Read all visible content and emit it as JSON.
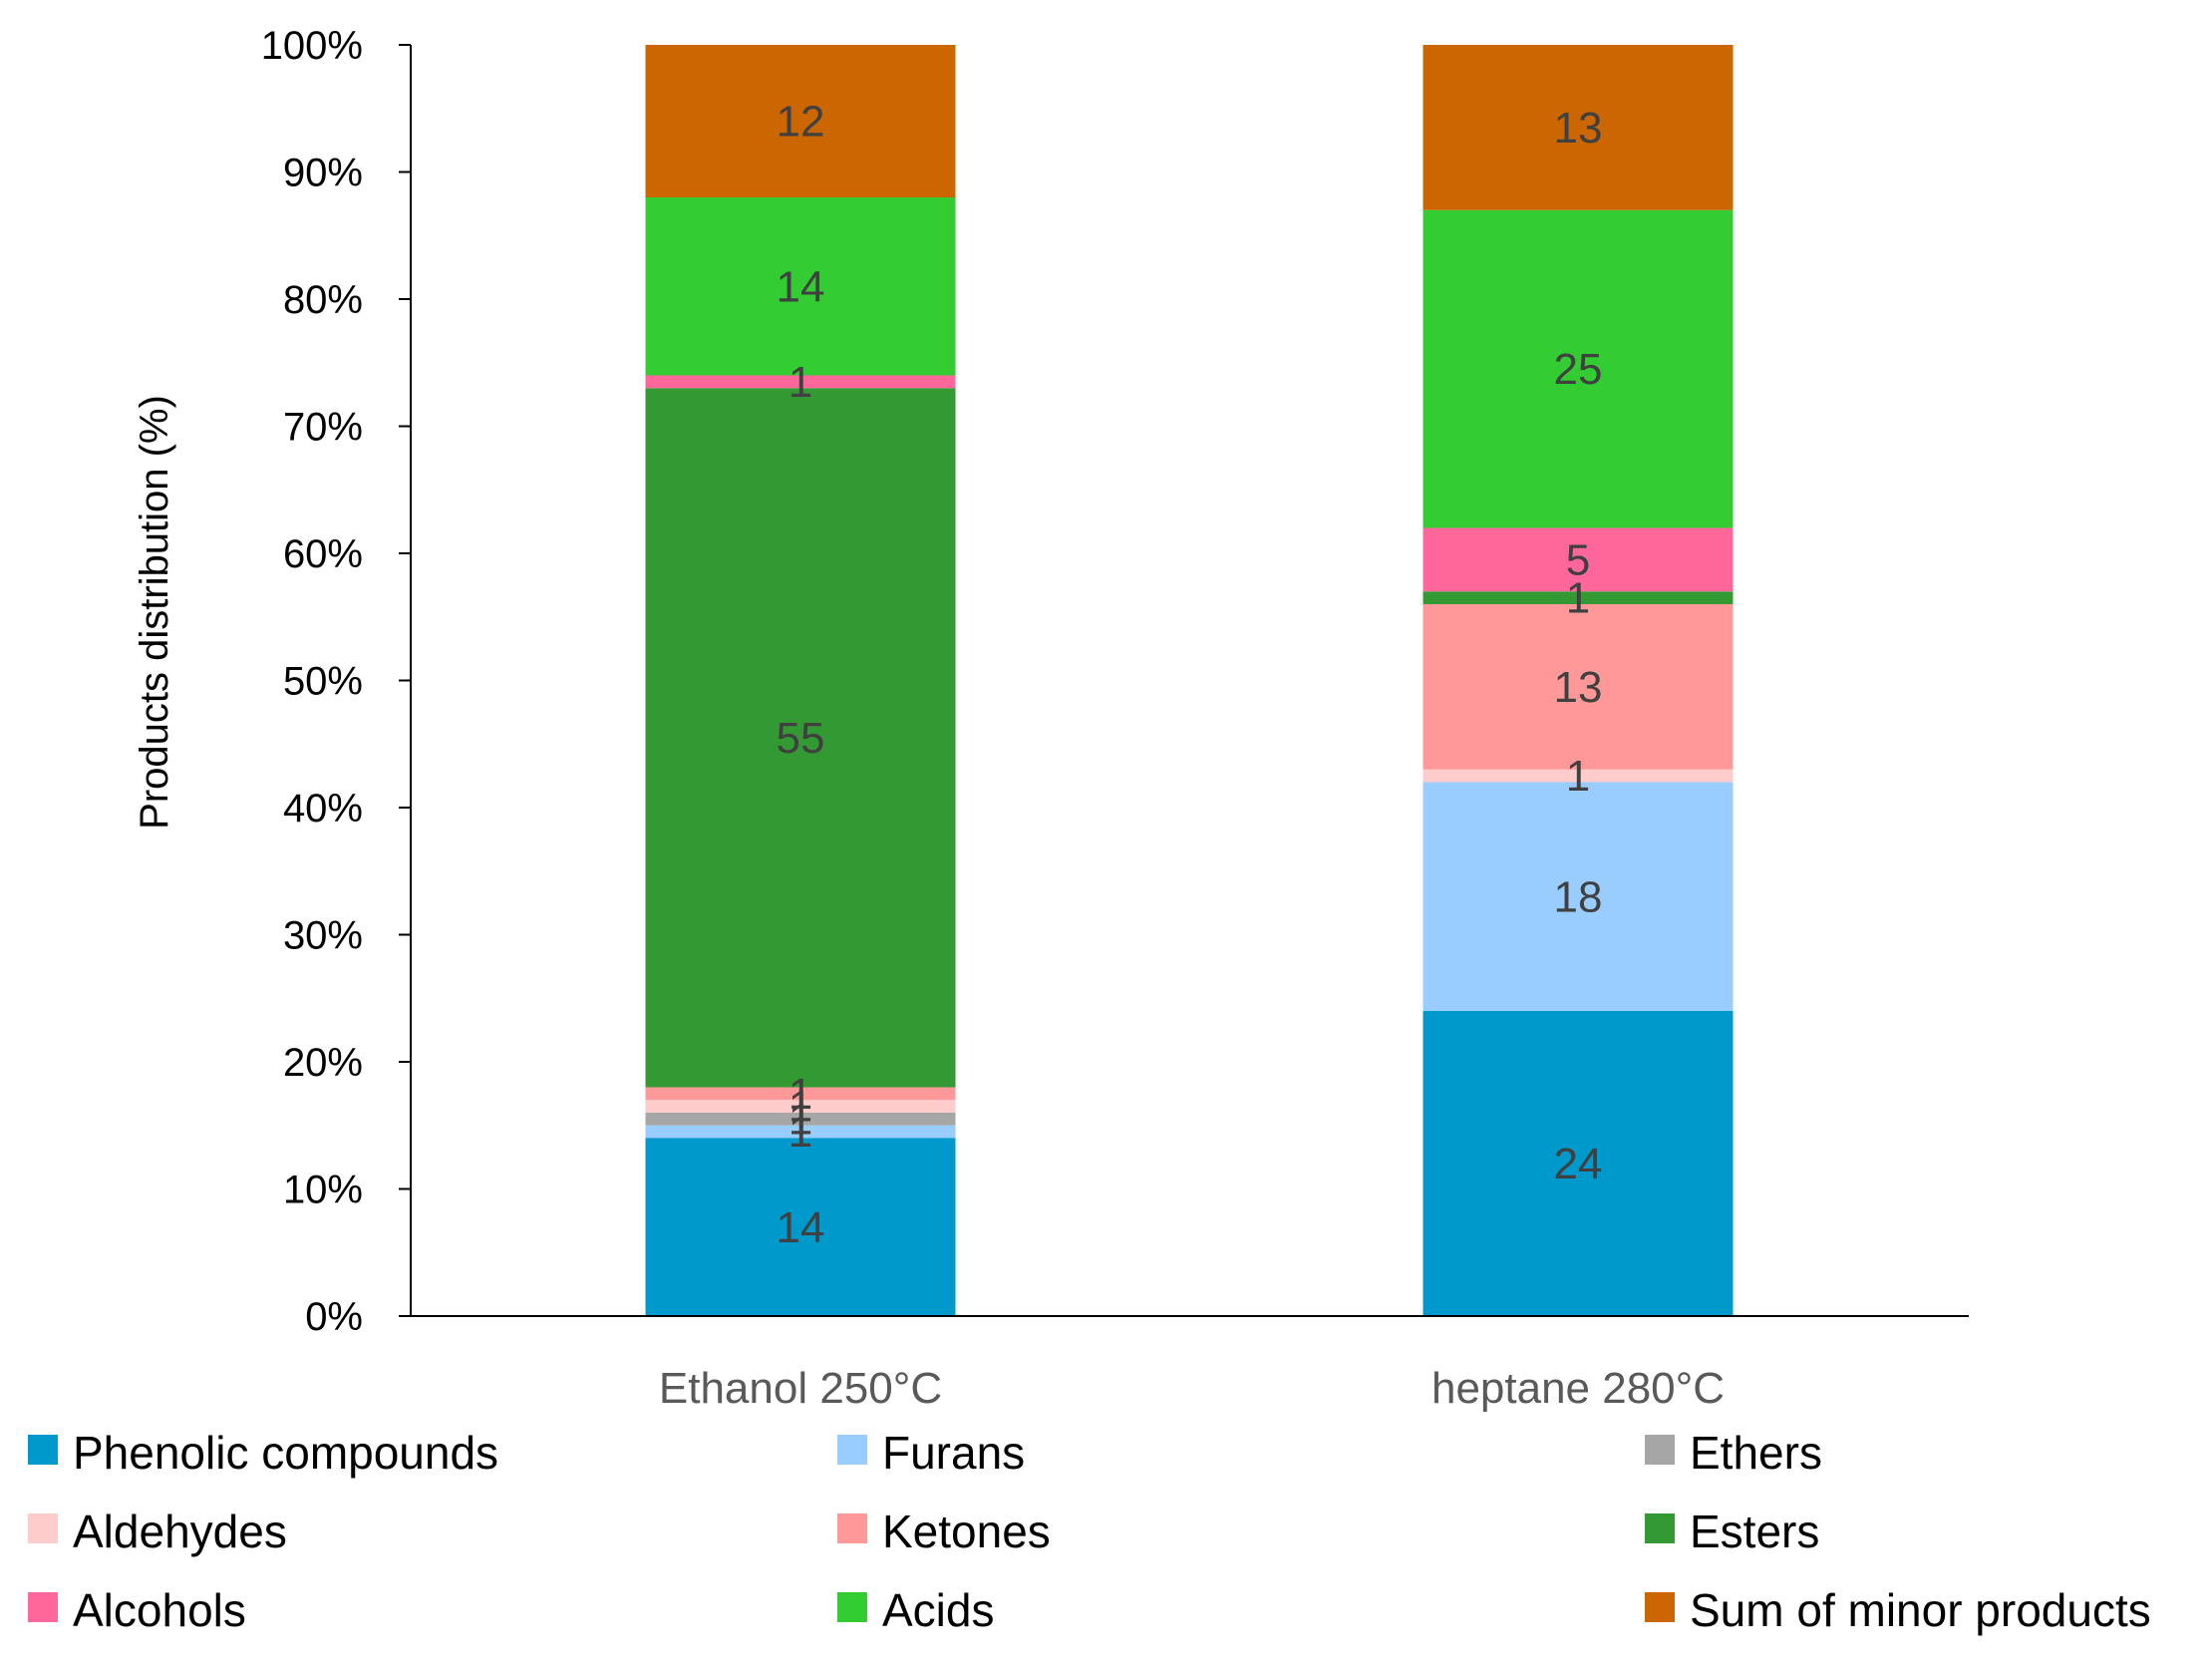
{
  "chart_data": {
    "type": "bar",
    "stacked": true,
    "percent": true,
    "title": "",
    "xlabel": "",
    "ylabel": "Products distribution (%)",
    "ylim": [
      0,
      100
    ],
    "yticks": [
      "0%",
      "10%",
      "20%",
      "30%",
      "40%",
      "50%",
      "60%",
      "70%",
      "80%",
      "90%",
      "100%"
    ],
    "grid": false,
    "legend_position": "bottom",
    "categories": [
      "Ethanol 250°C",
      "heptane 280°C"
    ],
    "series": [
      {
        "name": "Phenolic compounds",
        "color": "#0099CC",
        "values": [
          14,
          24
        ]
      },
      {
        "name": "Furans",
        "color": "#99CCFF",
        "values": [
          1,
          18
        ]
      },
      {
        "name": "Ethers",
        "color": "#A6A6A6",
        "values": [
          1,
          0
        ]
      },
      {
        "name": "Aldehydes",
        "color": "#FFCCCC",
        "values": [
          1,
          1
        ]
      },
      {
        "name": "Ketones",
        "color": "#FF9999",
        "values": [
          1,
          13
        ]
      },
      {
        "name": "Esters",
        "color": "#339933",
        "values": [
          55,
          1
        ]
      },
      {
        "name": "Alcohols",
        "color": "#FF6699",
        "values": [
          1,
          5
        ]
      },
      {
        "name": "Acids",
        "color": "#33CC33",
        "values": [
          14,
          25
        ]
      },
      {
        "name": "Sum of minor products",
        "color": "#CC6600",
        "values": [
          12,
          13
        ]
      }
    ]
  }
}
